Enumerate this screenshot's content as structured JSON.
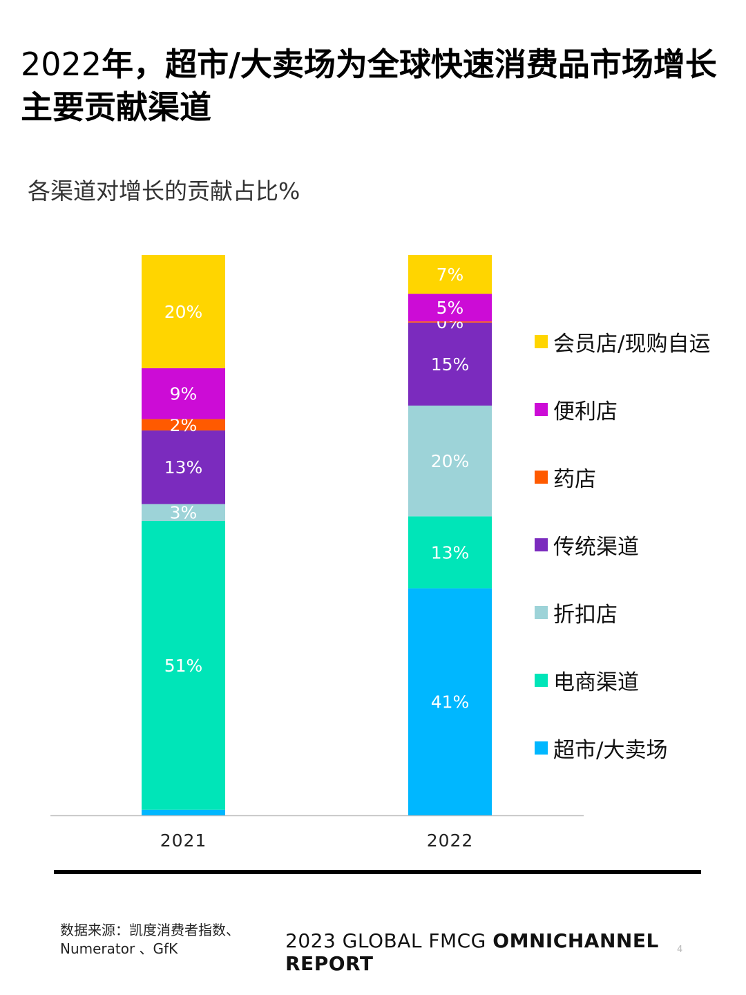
{
  "title": {
    "year_part": "2022",
    "rest": "年，超市/大卖场为全球快速消费品市场增长主要贡献渠道"
  },
  "subtitle": "各渠道对增长的贡献占比%",
  "legend": [
    {
      "label": "会员店/现购自运",
      "color": "#FFD500"
    },
    {
      "label": "便利店",
      "color": "#CC0CD6"
    },
    {
      "label": "药店",
      "color": "#FF5A00"
    },
    {
      "label": "传统渠道",
      "color": "#7B2BBE"
    },
    {
      "label": "折扣店",
      "color": "#9DD3D8"
    },
    {
      "label": "电商渠道",
      "color": "#00E5B8"
    },
    {
      "label": "超市/大卖场",
      "color": "#00B7FF"
    }
  ],
  "chart_data": {
    "type": "bar",
    "stacked": true,
    "categories": [
      "2021",
      "2022"
    ],
    "series": [
      {
        "name": "超市/大卖场",
        "color": "#00B7FF",
        "values": [
          1,
          41
        ],
        "labels": [
          "",
          "41%"
        ]
      },
      {
        "name": "电商渠道",
        "color": "#00E5B8",
        "values": [
          51,
          13
        ],
        "labels": [
          "51%",
          "13%"
        ]
      },
      {
        "name": "折扣店",
        "color": "#9DD3D8",
        "values": [
          3,
          20
        ],
        "labels": [
          "3%",
          "20%"
        ]
      },
      {
        "name": "传统渠道",
        "color": "#7B2BBE",
        "values": [
          13,
          15
        ],
        "labels": [
          "13%",
          "15%"
        ]
      },
      {
        "name": "药店",
        "color": "#FF5A00",
        "values": [
          2,
          0.2
        ],
        "labels": [
          "2%",
          "0%"
        ]
      },
      {
        "name": "便利店",
        "color": "#CC0CD6",
        "values": [
          9,
          5
        ],
        "labels": [
          "9%",
          "5%"
        ]
      },
      {
        "name": "会员店/现购自运",
        "color": "#FFD500",
        "values": [
          20,
          7
        ],
        "labels": [
          "20%",
          "7%"
        ]
      }
    ],
    "legend_position": "right",
    "grid": false
  },
  "footer": {
    "source": "数据来源：凯度消费者指数、Numerator 、GfK",
    "brand_regular": "2023 GLOBAL FMCG ",
    "brand_bold": "OMNICHANNEL REPORT",
    "page_number": "4"
  }
}
